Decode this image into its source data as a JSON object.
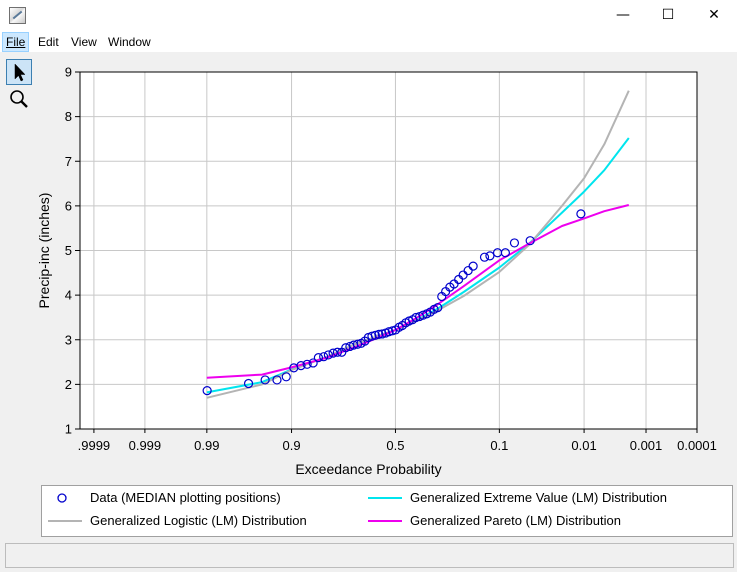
{
  "window": {
    "minimize_glyph": "—",
    "maximize_glyph": "☐",
    "close_glyph": "✕",
    "app_icon": "chart-icon"
  },
  "menu": {
    "items": [
      "File",
      "Edit",
      "View",
      "Window"
    ]
  },
  "toolbar": {
    "tools": [
      {
        "name": "pointer-tool",
        "icon": "arrow-cursor-icon",
        "selected": true
      },
      {
        "name": "zoom-tool",
        "icon": "magnifier-icon",
        "selected": false
      }
    ]
  },
  "chart_data": {
    "type": "line",
    "title": "",
    "xlabel": "Exceedance Probability",
    "ylabel": "Precip-inc (inches)",
    "x_scale": "normal-probability (reversed)",
    "x_ticks": [
      "0.9999",
      "0.999",
      "0.99",
      "0.9",
      "0.5",
      "0.1",
      "0.01",
      "0.001",
      "0.0001"
    ],
    "x_tick_label_prefix_clipped": ".9999",
    "y_ticks": [
      1,
      2,
      3,
      4,
      5,
      6,
      7,
      8,
      9
    ],
    "ylim": [
      1,
      9
    ],
    "grid": true,
    "legend_position": "bottom",
    "series": [
      {
        "name": "Data (MEDIAN plotting positions)",
        "kind": "scatter",
        "color": "#0000cc",
        "points": [
          [
            0.9899,
            1.86
          ],
          [
            0.965,
            2.02
          ],
          [
            0.946,
            2.1
          ],
          [
            0.928,
            2.1
          ],
          [
            0.911,
            2.17
          ],
          [
            0.895,
            2.37
          ],
          [
            0.878,
            2.42
          ],
          [
            0.862,
            2.45
          ],
          [
            0.845,
            2.48
          ],
          [
            0.829,
            2.6
          ],
          [
            0.812,
            2.62
          ],
          [
            0.796,
            2.66
          ],
          [
            0.779,
            2.7
          ],
          [
            0.763,
            2.72
          ],
          [
            0.746,
            2.72
          ],
          [
            0.73,
            2.82
          ],
          [
            0.713,
            2.85
          ],
          [
            0.697,
            2.88
          ],
          [
            0.68,
            2.9
          ],
          [
            0.664,
            2.92
          ],
          [
            0.647,
            2.97
          ],
          [
            0.631,
            3.05
          ],
          [
            0.614,
            3.08
          ],
          [
            0.598,
            3.1
          ],
          [
            0.581,
            3.12
          ],
          [
            0.565,
            3.13
          ],
          [
            0.548,
            3.15
          ],
          [
            0.532,
            3.18
          ],
          [
            0.515,
            3.2
          ],
          [
            0.499,
            3.22
          ],
          [
            0.482,
            3.28
          ],
          [
            0.466,
            3.32
          ],
          [
            0.449,
            3.38
          ],
          [
            0.433,
            3.42
          ],
          [
            0.416,
            3.45
          ],
          [
            0.4,
            3.5
          ],
          [
            0.383,
            3.52
          ],
          [
            0.367,
            3.55
          ],
          [
            0.35,
            3.58
          ],
          [
            0.334,
            3.62
          ],
          [
            0.317,
            3.68
          ],
          [
            0.301,
            3.72
          ],
          [
            0.284,
            3.97
          ],
          [
            0.268,
            4.08
          ],
          [
            0.251,
            4.18
          ],
          [
            0.235,
            4.25
          ],
          [
            0.218,
            4.35
          ],
          [
            0.202,
            4.45
          ],
          [
            0.185,
            4.55
          ],
          [
            0.169,
            4.65
          ],
          [
            0.136,
            4.85
          ],
          [
            0.122,
            4.88
          ],
          [
            0.104,
            4.95
          ],
          [
            0.0876,
            4.95
          ],
          [
            0.0711,
            5.17
          ],
          [
            0.0483,
            5.22
          ],
          [
            0.0111,
            5.82
          ]
        ]
      },
      {
        "name": "Generalized Extreme Value (LM) Distribution",
        "kind": "line",
        "color": "#00e5ee",
        "points": [
          [
            0.99,
            1.82
          ],
          [
            0.95,
            2.05
          ],
          [
            0.9,
            2.33
          ],
          [
            0.8,
            2.62
          ],
          [
            0.7,
            2.88
          ],
          [
            0.6,
            3.05
          ],
          [
            0.5,
            3.22
          ],
          [
            0.4,
            3.43
          ],
          [
            0.3,
            3.7
          ],
          [
            0.2,
            4.07
          ],
          [
            0.1,
            4.62
          ],
          [
            0.05,
            5.15
          ],
          [
            0.02,
            5.85
          ],
          [
            0.01,
            6.32
          ],
          [
            0.005,
            6.8
          ],
          [
            0.002,
            7.52
          ]
        ]
      },
      {
        "name": "Generalized Logistic (LM) Distribution",
        "kind": "line",
        "color": "#b4b4b4",
        "points": [
          [
            0.99,
            1.7
          ],
          [
            0.95,
            2.0
          ],
          [
            0.9,
            2.32
          ],
          [
            0.8,
            2.62
          ],
          [
            0.7,
            2.88
          ],
          [
            0.6,
            3.06
          ],
          [
            0.5,
            3.22
          ],
          [
            0.4,
            3.42
          ],
          [
            0.3,
            3.66
          ],
          [
            0.2,
            3.98
          ],
          [
            0.1,
            4.52
          ],
          [
            0.05,
            5.12
          ],
          [
            0.02,
            6.0
          ],
          [
            0.01,
            6.62
          ],
          [
            0.005,
            7.38
          ],
          [
            0.002,
            8.58
          ]
        ]
      },
      {
        "name": "Generalized Pareto (LM) Distribution",
        "kind": "line",
        "color": "#ee00ee",
        "points": [
          [
            0.99,
            2.15
          ],
          [
            0.95,
            2.22
          ],
          [
            0.9,
            2.38
          ],
          [
            0.8,
            2.6
          ],
          [
            0.7,
            2.82
          ],
          [
            0.6,
            3.02
          ],
          [
            0.5,
            3.22
          ],
          [
            0.4,
            3.48
          ],
          [
            0.3,
            3.8
          ],
          [
            0.2,
            4.2
          ],
          [
            0.1,
            4.78
          ],
          [
            0.05,
            5.15
          ],
          [
            0.02,
            5.55
          ],
          [
            0.01,
            5.72
          ],
          [
            0.005,
            5.88
          ],
          [
            0.002,
            6.02
          ]
        ]
      }
    ]
  },
  "legend": {
    "entries": [
      {
        "label": "Data (MEDIAN plotting positions)",
        "marker": "circle",
        "color": "#0000cc"
      },
      {
        "label": "Generalized Extreme Value (LM) Distribution",
        "marker": "line",
        "color": "#00e5ee"
      },
      {
        "label": "Generalized Logistic (LM) Distribution",
        "marker": "line",
        "color": "#b4b4b4"
      },
      {
        "label": "Generalized Pareto (LM) Distribution",
        "marker": "line",
        "color": "#ee00ee"
      }
    ]
  }
}
